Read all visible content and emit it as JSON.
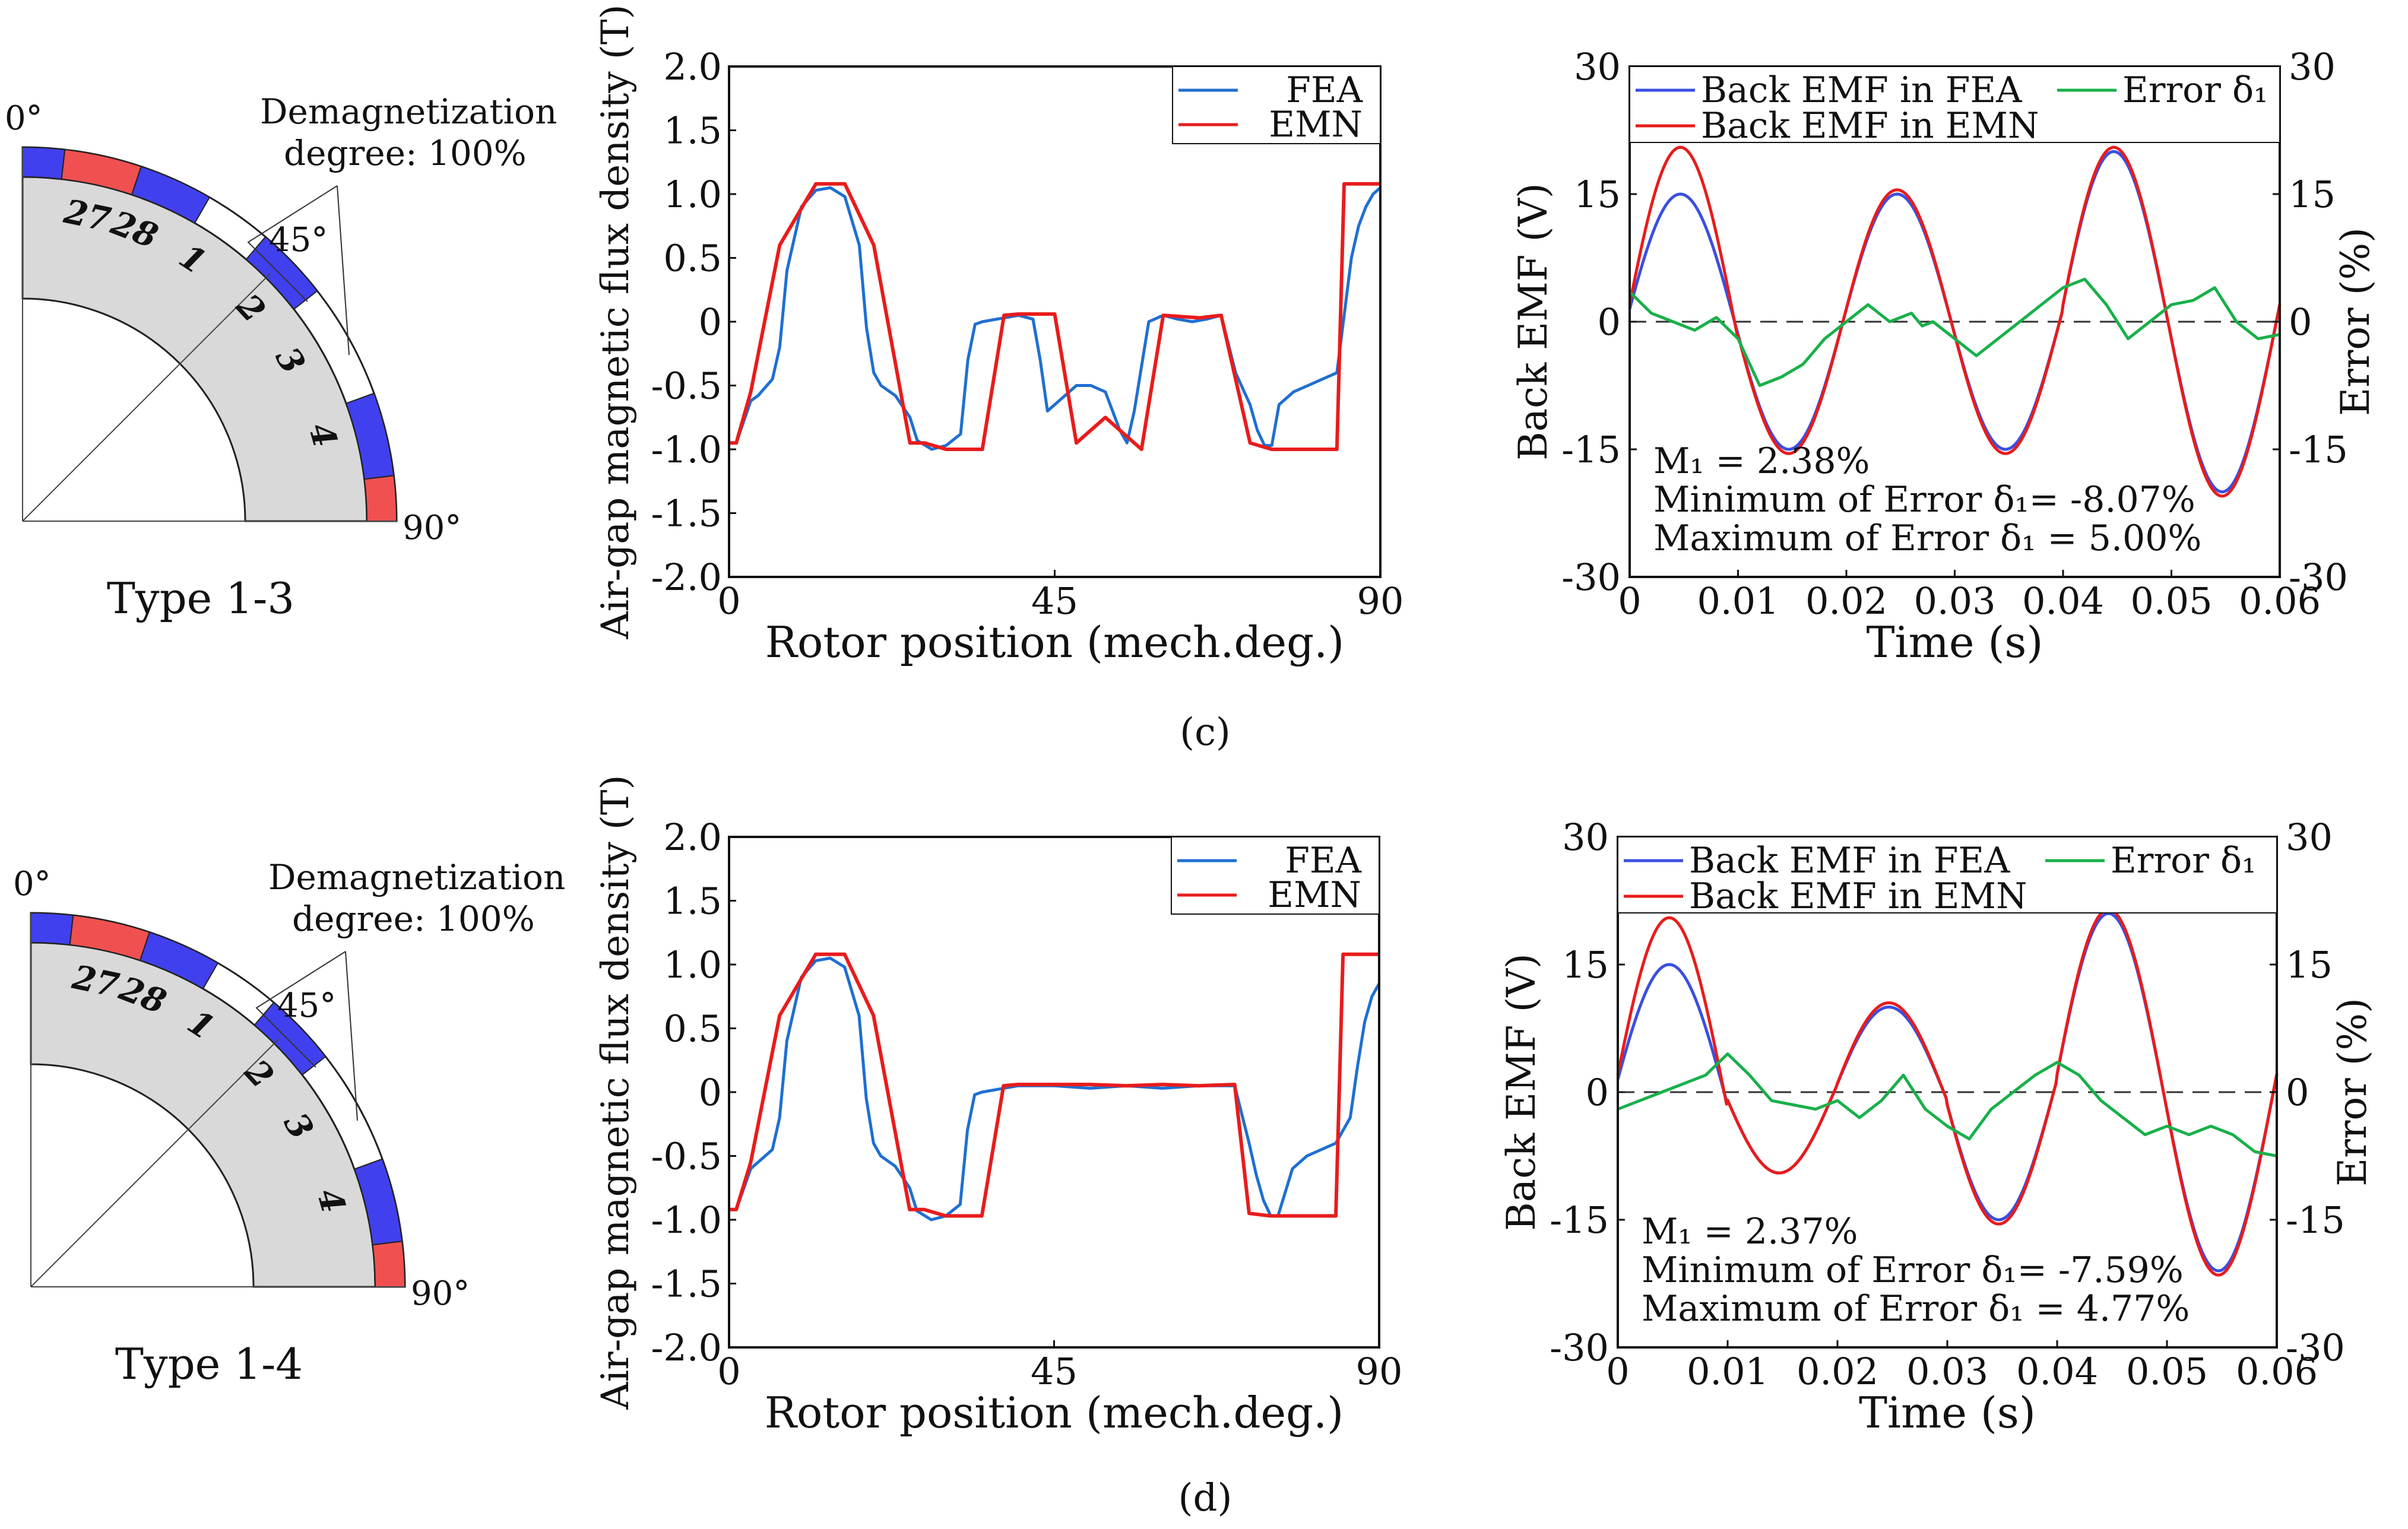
{
  "labels": {
    "panel_c": "(c)",
    "panel_d": "(d)"
  },
  "diagrams": [
    {
      "type_label": "Type 1-3",
      "demag_line1": "Demagnetization",
      "demag_line2": "degree: 100%",
      "angle_0": "0°",
      "angle_45": "45°",
      "angle_90": "90°",
      "pole_numbers": [
        "27",
        "28",
        "1",
        "2",
        "3",
        "4"
      ],
      "colors": {
        "north": "#4040ee",
        "south": "#f05050",
        "iron": "#d9d9d9"
      }
    },
    {
      "type_label": "Type 1-4",
      "demag_line1": "Demagnetization",
      "demag_line2": "degree: 100%",
      "angle_0": "0°",
      "angle_45": "45°",
      "angle_90": "90°",
      "pole_numbers": [
        "27",
        "28",
        "1",
        "2",
        "3",
        "4"
      ],
      "colors": {
        "north": "#4040ee",
        "south": "#f05050",
        "iron": "#d9d9d9"
      }
    }
  ],
  "chart_data": [
    {
      "type": "line",
      "panel": "c",
      "xlabel": "Rotor position (mech.deg.)",
      "ylabel": "Air-gap magnetic flux density (T)",
      "xlim": [
        0,
        90
      ],
      "ylim": [
        -2.0,
        2.0
      ],
      "xticks": [
        "0",
        "45",
        "90"
      ],
      "yticks": [
        "2.0",
        "1.5",
        "1.0",
        "0.5",
        "0",
        "-0.5",
        "-1.0",
        "-1.5",
        "-2.0"
      ],
      "legend": "top-right",
      "series": [
        {
          "name": "FEA",
          "color": "#1f6fd1",
          "x": [
            0,
            1,
            3,
            4,
            6,
            7,
            8,
            10,
            12,
            14,
            16,
            18,
            19,
            20,
            21,
            23,
            25,
            26,
            28,
            30,
            32,
            33,
            34,
            35,
            37,
            40,
            42,
            43,
            44,
            46,
            48,
            50,
            52,
            53,
            54,
            55,
            56,
            58,
            60,
            62,
            64,
            66,
            68,
            70,
            72,
            73,
            74,
            75,
            76,
            78,
            80,
            82,
            84,
            86,
            87,
            88,
            89,
            90
          ],
          "y": [
            -0.95,
            -0.95,
            -0.62,
            -0.58,
            -0.45,
            -0.2,
            0.4,
            0.9,
            1.03,
            1.05,
            0.98,
            0.6,
            -0.05,
            -0.4,
            -0.5,
            -0.58,
            -0.75,
            -0.93,
            -1.0,
            -0.97,
            -0.88,
            -0.3,
            -0.02,
            0.0,
            0.02,
            0.05,
            0.02,
            -0.3,
            -0.7,
            -0.6,
            -0.5,
            -0.5,
            -0.55,
            -0.7,
            -0.85,
            -0.95,
            -0.7,
            0.0,
            0.05,
            0.02,
            0.0,
            0.02,
            0.05,
            -0.4,
            -0.65,
            -0.85,
            -0.97,
            -0.97,
            -0.65,
            -0.55,
            -0.5,
            -0.45,
            -0.4,
            0.5,
            0.75,
            0.9,
            1.0,
            1.05
          ]
        },
        {
          "name": "EMN",
          "color": "#e81c1c",
          "x": [
            0,
            1,
            3,
            7,
            12,
            16,
            20,
            25,
            27,
            30,
            35,
            38,
            40,
            45,
            48,
            52,
            56,
            57,
            60,
            65,
            68,
            72,
            75,
            77,
            80,
            84,
            85,
            90
          ],
          "y": [
            -0.95,
            -0.95,
            -0.55,
            0.6,
            1.08,
            1.08,
            0.6,
            -0.95,
            -0.95,
            -1.0,
            -1.0,
            0.05,
            0.06,
            0.06,
            -0.95,
            -0.75,
            -0.95,
            -1.0,
            0.05,
            0.03,
            0.05,
            -0.95,
            -1.0,
            -1.0,
            -1.0,
            -1.0,
            1.08,
            1.08
          ]
        }
      ]
    },
    {
      "type": "line",
      "panel": "c",
      "xlabel": "Time (s)",
      "ylabel": "Back EMF (V)",
      "y2label": "Error (%)",
      "xlim": [
        0,
        0.06
      ],
      "ylim": [
        -30,
        30
      ],
      "y2lim": [
        -30,
        30
      ],
      "xticks": [
        "0",
        "0.01",
        "0.02",
        "0.03",
        "0.04",
        "0.05",
        "0.06"
      ],
      "yticks": [
        "30",
        "15",
        "0",
        "-15",
        "-30"
      ],
      "legend": "top",
      "annotations": [
        "M₁ = 2.38%",
        "Minimum of Error δ₁= -8.07%",
        "Maximum  of Error δ₁ = 5.00%"
      ],
      "series": [
        {
          "name": "Back EMF in FEA",
          "color": "#3a4fe0",
          "model": {
            "f": 50,
            "amp": [
              15,
              15,
              15,
              15,
              20,
              20
            ],
            "phase": 0.1
          }
        },
        {
          "name": "Back EMF in EMN",
          "color": "#e81c1c",
          "model": {
            "f": 50,
            "amp": [
              20.5,
              15.5,
              15.5,
              15.5,
              20.5,
              20.5
            ],
            "phase": 0.1
          }
        },
        {
          "name": "Error δ₁",
          "color": "#18b04a",
          "x": [
            0,
            0.002,
            0.004,
            0.006,
            0.008,
            0.01,
            0.012,
            0.014,
            0.016,
            0.018,
            0.02,
            0.022,
            0.024,
            0.026,
            0.027,
            0.028,
            0.03,
            0.032,
            0.034,
            0.036,
            0.038,
            0.04,
            0.042,
            0.044,
            0.046,
            0.048,
            0.05,
            0.052,
            0.054,
            0.056,
            0.058,
            0.06
          ],
          "y": [
            3.5,
            1,
            0,
            -1,
            0.5,
            -2,
            -7.5,
            -6.5,
            -5,
            -2,
            0,
            2,
            0,
            1,
            -0.5,
            0,
            -2,
            -4,
            -2,
            0,
            2,
            4,
            5,
            2,
            -2,
            0,
            2,
            2.5,
            4,
            0,
            -2,
            -1.5
          ]
        }
      ]
    },
    {
      "type": "line",
      "panel": "d",
      "xlabel": "Rotor position (mech.deg.)",
      "ylabel": "Air-gap magnetic flux density (T)",
      "xlim": [
        0,
        90
      ],
      "ylim": [
        -2.0,
        2.0
      ],
      "xticks": [
        "0",
        "45",
        "90"
      ],
      "yticks": [
        "2.0",
        "1.5",
        "1.0",
        "0.5",
        "0",
        "-0.5",
        "-1.0",
        "-1.5",
        "-2.0"
      ],
      "legend": "top-right",
      "series": [
        {
          "name": "FEA",
          "color": "#1f6fd1",
          "x": [
            0,
            1,
            3,
            4,
            6,
            7,
            8,
            10,
            12,
            14,
            16,
            18,
            19,
            20,
            21,
            23,
            25,
            26,
            28,
            30,
            32,
            33,
            34,
            35,
            37,
            40,
            45,
            50,
            55,
            60,
            65,
            70,
            72,
            73,
            74,
            75,
            76,
            78,
            80,
            82,
            84,
            86,
            87,
            88,
            89,
            90
          ],
          "y": [
            -0.92,
            -0.92,
            -0.6,
            -0.55,
            -0.45,
            -0.2,
            0.4,
            0.9,
            1.03,
            1.05,
            0.98,
            0.6,
            -0.05,
            -0.4,
            -0.5,
            -0.58,
            -0.75,
            -0.93,
            -1.0,
            -0.97,
            -0.88,
            -0.3,
            -0.02,
            0.0,
            0.02,
            0.05,
            0.05,
            0.03,
            0.05,
            0.03,
            0.05,
            0.05,
            -0.4,
            -0.65,
            -0.85,
            -0.97,
            -0.97,
            -0.6,
            -0.5,
            -0.45,
            -0.4,
            -0.2,
            0.2,
            0.55,
            0.75,
            0.85
          ]
        },
        {
          "name": "EMN",
          "color": "#e81c1c",
          "x": [
            0,
            1,
            3,
            7,
            12,
            16,
            20,
            25,
            27,
            30,
            35,
            38,
            40,
            45,
            50,
            55,
            60,
            65,
            70,
            72,
            75,
            77,
            80,
            84,
            85,
            90
          ],
          "y": [
            -0.92,
            -0.92,
            -0.55,
            0.6,
            1.08,
            1.08,
            0.6,
            -0.92,
            -0.92,
            -0.97,
            -0.97,
            0.05,
            0.06,
            0.06,
            0.06,
            0.05,
            0.06,
            0.05,
            0.06,
            -0.95,
            -0.97,
            -0.97,
            -0.97,
            -0.97,
            1.08,
            1.08
          ]
        }
      ]
    },
    {
      "type": "line",
      "panel": "d",
      "xlabel": "Time (s)",
      "ylabel": "Back EMF (V)",
      "y2label": "Error (%)",
      "xlim": [
        0,
        0.06
      ],
      "ylim": [
        -30,
        30
      ],
      "y2lim": [
        -30,
        30
      ],
      "xticks": [
        "0",
        "0.01",
        "0.02",
        "0.03",
        "0.04",
        "0.05",
        "0.06"
      ],
      "yticks": [
        "30",
        "15",
        "0",
        "-15",
        "-30"
      ],
      "legend": "top",
      "annotations": [
        "M₁ = 2.37%",
        "Minimum of Error δ₁= -7.59%",
        "Maximum  of Error δ₁ = 4.77%"
      ],
      "series": [
        {
          "name": "Back EMF in FEA",
          "color": "#3a4fe0",
          "model": {
            "f": 50,
            "amp": [
              15,
              9.5,
              10,
              15,
              21,
              21
            ],
            "phase": 0.1
          }
        },
        {
          "name": "Back EMF in EMN",
          "color": "#e81c1c",
          "model": {
            "f": 50,
            "amp": [
              20.5,
              9.5,
              10.5,
              15.5,
              21.5,
              21.5
            ],
            "phase": 0.1
          }
        },
        {
          "name": "Error δ₁",
          "color": "#18b04a",
          "x": [
            0,
            0.002,
            0.004,
            0.006,
            0.008,
            0.01,
            0.012,
            0.014,
            0.016,
            0.018,
            0.02,
            0.022,
            0.024,
            0.026,
            0.028,
            0.03,
            0.032,
            0.034,
            0.036,
            0.038,
            0.04,
            0.042,
            0.044,
            0.046,
            0.048,
            0.05,
            0.052,
            0.054,
            0.056,
            0.058,
            0.06
          ],
          "y": [
            -2,
            -1,
            0,
            1,
            2,
            4.5,
            2,
            -1,
            -1.5,
            -2,
            -1,
            -3,
            -1,
            2,
            -2,
            -4,
            -5.5,
            -2,
            0,
            2,
            3.5,
            2,
            -1,
            -3,
            -5,
            -4,
            -5,
            -4,
            -5,
            -7,
            -7.5
          ]
        }
      ]
    }
  ]
}
